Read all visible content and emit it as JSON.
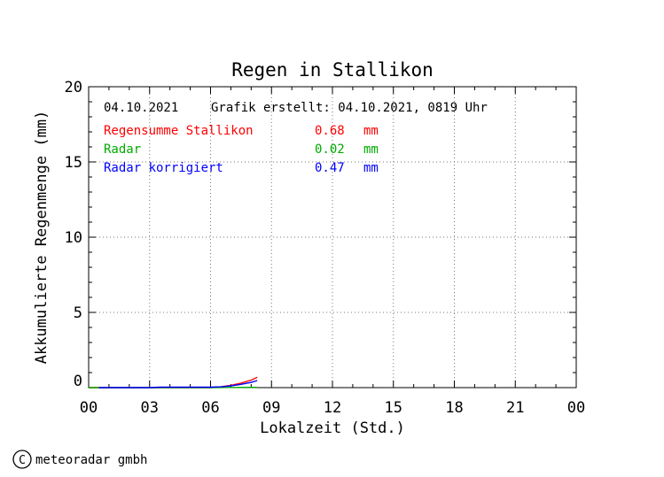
{
  "chart_data": {
    "type": "line",
    "title": "Regen in Stallikon",
    "xlabel": "Lokalzeit (Std.)",
    "ylabel": "Akkumulierte Regenmenge (mm)",
    "xlim": [
      0,
      24
    ],
    "ylim": [
      0,
      20
    ],
    "x_ticks": [
      "00",
      "03",
      "06",
      "09",
      "12",
      "15",
      "18",
      "21",
      "00"
    ],
    "y_ticks": [
      "0",
      "5",
      "10",
      "15",
      "20"
    ],
    "grid": true,
    "header": {
      "date": "04.10.2021",
      "created": "Grafik erstellt: 04.10.2021, 0819 Uhr"
    },
    "series": [
      {
        "name": "Regensumme Stallikon",
        "total": "0.68",
        "unit": "mm",
        "color": "#ff0000",
        "x": [
          0,
          0.5,
          3.0,
          3.5,
          6.0,
          6.5,
          7.0,
          7.5,
          8.0,
          8.3
        ],
        "y": [
          0,
          0,
          0,
          0,
          0,
          0.05,
          0.15,
          0.3,
          0.5,
          0.68
        ]
      },
      {
        "name": "Radar",
        "total": "0.02",
        "unit": "mm",
        "color": "#00aa00",
        "x": [
          0,
          3.0,
          6.0,
          7.0,
          8.0,
          8.3
        ],
        "y": [
          0,
          0,
          0,
          0.01,
          0.02,
          0.02
        ]
      },
      {
        "name": "Radar korrigiert",
        "total": "0.47",
        "unit": "mm",
        "color": "#0000ff",
        "x": [
          0.5,
          3.0,
          3.5,
          6.0,
          6.5,
          7.0,
          7.5,
          8.0,
          8.3
        ],
        "y": [
          0,
          0,
          0.03,
          0.03,
          0.05,
          0.12,
          0.22,
          0.35,
          0.47
        ]
      }
    ]
  },
  "footer": {
    "copyright_symbol": "C",
    "company": "meteoradar gmbh"
  }
}
